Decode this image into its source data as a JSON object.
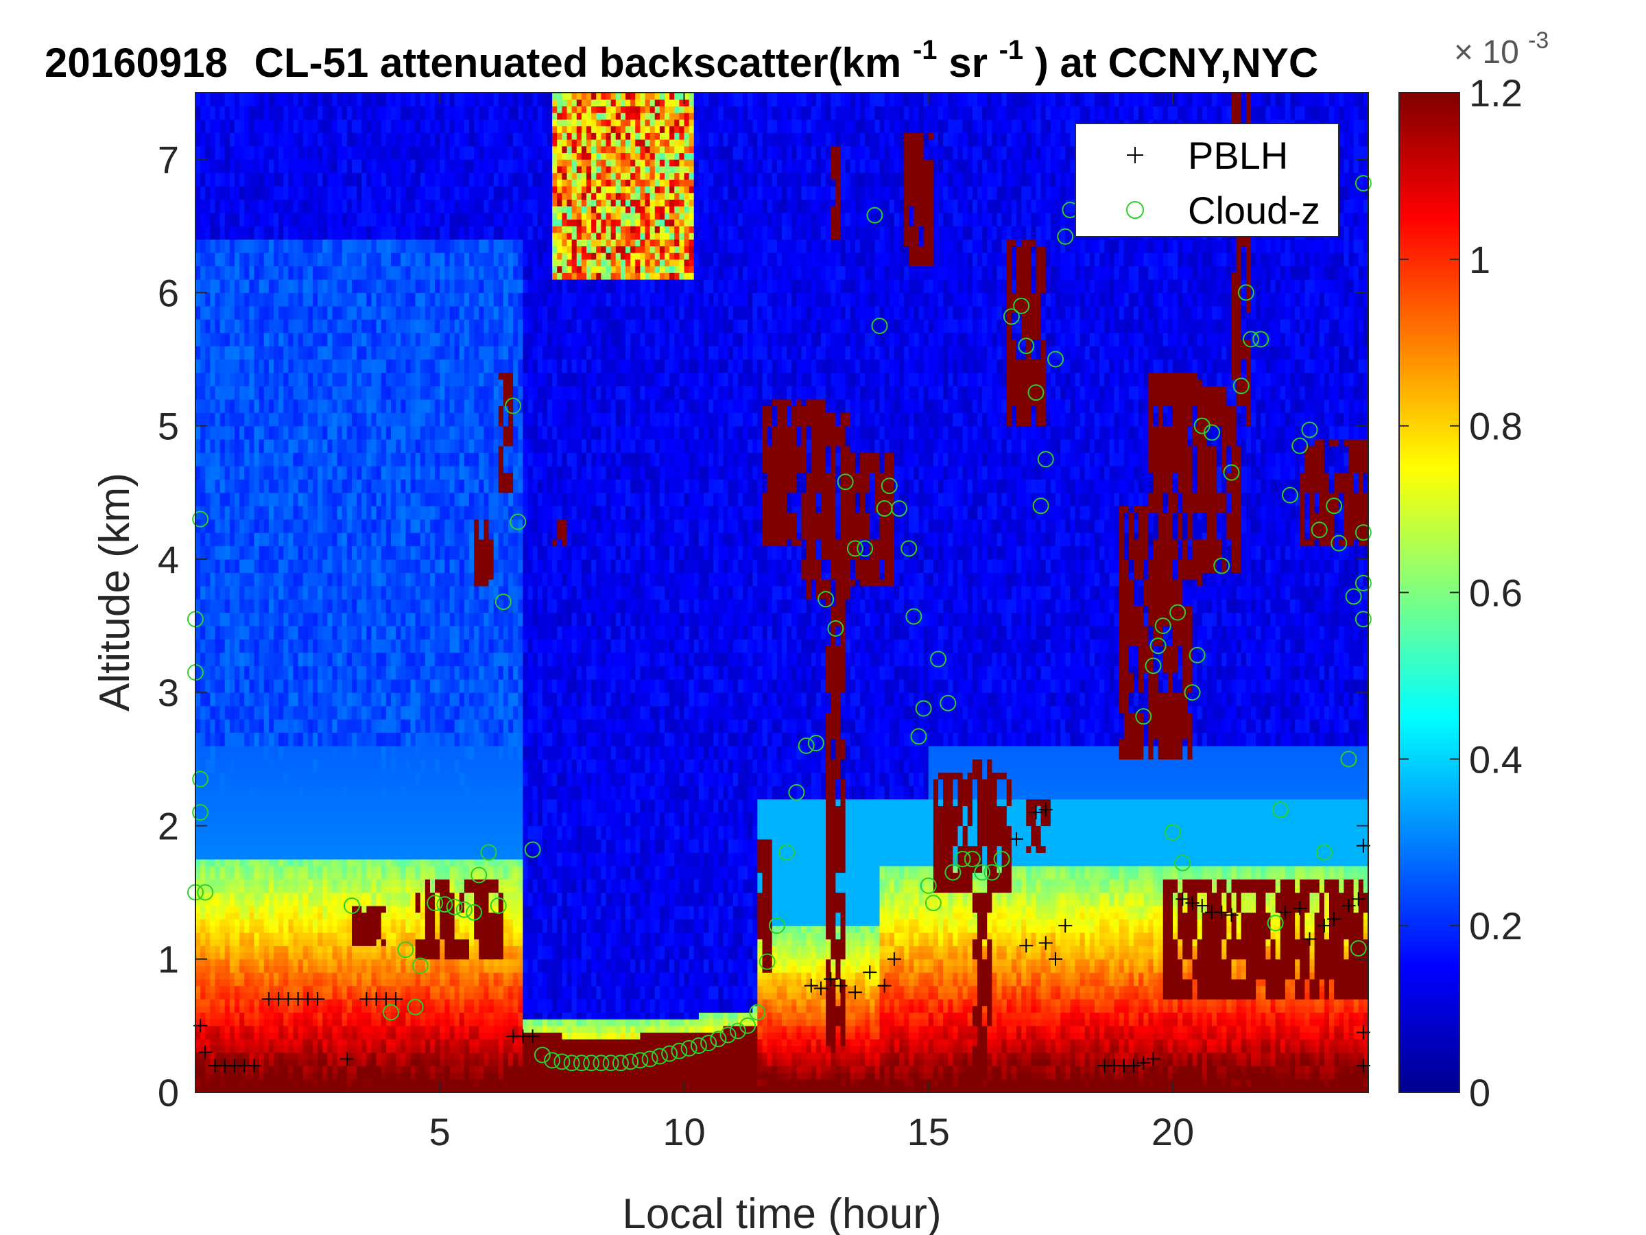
{
  "chart_data": {
    "type": "heatmap",
    "title": {
      "date": "20160918",
      "prefix": "CL-51 attenuated backscatter(km",
      "exp1": "-1",
      "mid": "sr",
      "exp2": "-1",
      "suffix": ") at CCNY,NYC"
    },
    "xlabel": "Local time (hour)",
    "ylabel": "Altitude (km)",
    "xlim": [
      0,
      24
    ],
    "ylim": [
      0,
      7.5
    ],
    "x_ticks": [
      5,
      10,
      15,
      20
    ],
    "y_ticks": [
      0,
      1,
      2,
      3,
      4,
      5,
      6,
      7
    ],
    "colorbar": {
      "range": [
        0,
        0.0012
      ],
      "ticks": [
        "0",
        "0.2",
        "0.4",
        "0.6",
        "0.8",
        "1",
        "1.2"
      ],
      "multiplier": "× 10",
      "multiplier_exp": "-3",
      "colormap": "jet"
    },
    "legend": {
      "placement": "top-right",
      "entries": [
        {
          "label": "PBLH",
          "marker": "+",
          "color": "#000000"
        },
        {
          "label": "Cloud-z",
          "marker": "o",
          "color": "#2bd12b"
        }
      ]
    },
    "series": [
      {
        "name": "PBLH",
        "points": [
          [
            0.1,
            0.5
          ],
          [
            0.2,
            0.3
          ],
          [
            0.4,
            0.2
          ],
          [
            0.6,
            0.2
          ],
          [
            0.8,
            0.2
          ],
          [
            1.0,
            0.2
          ],
          [
            1.2,
            0.2
          ],
          [
            1.5,
            0.7
          ],
          [
            1.7,
            0.7
          ],
          [
            1.9,
            0.7
          ],
          [
            2.1,
            0.7
          ],
          [
            2.3,
            0.7
          ],
          [
            2.5,
            0.7
          ],
          [
            3.1,
            0.25
          ],
          [
            3.5,
            0.7
          ],
          [
            3.7,
            0.7
          ],
          [
            3.9,
            0.7
          ],
          [
            4.1,
            0.7
          ],
          [
            6.5,
            0.42
          ],
          [
            6.7,
            0.42
          ],
          [
            6.9,
            0.42
          ],
          [
            12.6,
            0.8
          ],
          [
            12.8,
            0.78
          ],
          [
            13.0,
            0.85
          ],
          [
            13.2,
            0.8
          ],
          [
            13.5,
            0.75
          ],
          [
            13.8,
            0.9
          ],
          [
            14.1,
            0.8
          ],
          [
            14.3,
            1.0
          ],
          [
            16.8,
            1.9
          ],
          [
            17.2,
            2.1
          ],
          [
            17.4,
            2.12
          ],
          [
            17.0,
            1.1
          ],
          [
            17.4,
            1.12
          ],
          [
            17.6,
            1.0
          ],
          [
            17.8,
            1.25
          ],
          [
            18.6,
            0.2
          ],
          [
            18.8,
            0.2
          ],
          [
            19.0,
            0.2
          ],
          [
            19.2,
            0.2
          ],
          [
            19.4,
            0.22
          ],
          [
            19.6,
            0.25
          ],
          [
            20.2,
            1.45
          ],
          [
            20.4,
            1.42
          ],
          [
            20.6,
            1.4
          ],
          [
            20.8,
            1.35
          ],
          [
            21.0,
            1.35
          ],
          [
            21.2,
            1.33
          ],
          [
            22.3,
            1.35
          ],
          [
            22.6,
            1.38
          ],
          [
            22.8,
            1.15
          ],
          [
            23.1,
            1.25
          ],
          [
            23.3,
            1.3
          ],
          [
            23.6,
            1.4
          ],
          [
            23.8,
            1.45
          ],
          [
            23.9,
            0.45
          ],
          [
            23.9,
            0.2
          ],
          [
            23.9,
            1.85
          ]
        ]
      },
      {
        "name": "Cloud-z",
        "points": [
          [
            0.0,
            1.5
          ],
          [
            0.2,
            1.5
          ],
          [
            0.0,
            3.15
          ],
          [
            0.0,
            3.55
          ],
          [
            0.1,
            4.3
          ],
          [
            0.1,
            2.35
          ],
          [
            0.1,
            2.1
          ],
          [
            3.2,
            1.4
          ],
          [
            4.0,
            0.6
          ],
          [
            4.3,
            1.07
          ],
          [
            4.6,
            0.95
          ],
          [
            4.5,
            0.64
          ],
          [
            4.9,
            1.42
          ],
          [
            5.1,
            1.41
          ],
          [
            5.3,
            1.39
          ],
          [
            5.5,
            1.37
          ],
          [
            5.7,
            1.35
          ],
          [
            5.8,
            1.63
          ],
          [
            6.0,
            1.8
          ],
          [
            6.2,
            1.4
          ],
          [
            6.3,
            3.68
          ],
          [
            6.5,
            5.15
          ],
          [
            6.6,
            4.28
          ],
          [
            6.9,
            1.82
          ],
          [
            7.1,
            0.28
          ],
          [
            7.3,
            0.24
          ],
          [
            7.5,
            0.23
          ],
          [
            7.7,
            0.22
          ],
          [
            7.9,
            0.22
          ],
          [
            8.1,
            0.22
          ],
          [
            8.3,
            0.22
          ],
          [
            8.5,
            0.22
          ],
          [
            8.7,
            0.22
          ],
          [
            8.9,
            0.23
          ],
          [
            9.1,
            0.24
          ],
          [
            9.3,
            0.25
          ],
          [
            9.5,
            0.27
          ],
          [
            9.7,
            0.29
          ],
          [
            9.9,
            0.31
          ],
          [
            10.1,
            0.33
          ],
          [
            10.3,
            0.35
          ],
          [
            10.5,
            0.37
          ],
          [
            10.7,
            0.4
          ],
          [
            10.9,
            0.43
          ],
          [
            11.1,
            0.46
          ],
          [
            11.3,
            0.5
          ],
          [
            11.5,
            0.6
          ],
          [
            11.7,
            0.98
          ],
          [
            11.9,
            1.25
          ],
          [
            12.1,
            1.8
          ],
          [
            12.3,
            2.25
          ],
          [
            12.5,
            2.6
          ],
          [
            12.7,
            2.62
          ],
          [
            12.9,
            3.7
          ],
          [
            13.1,
            3.48
          ],
          [
            13.3,
            4.58
          ],
          [
            13.5,
            4.08
          ],
          [
            13.7,
            4.08
          ],
          [
            13.9,
            6.58
          ],
          [
            14.0,
            5.75
          ],
          [
            14.1,
            4.38
          ],
          [
            14.2,
            4.55
          ],
          [
            14.4,
            4.38
          ],
          [
            14.6,
            4.08
          ],
          [
            14.7,
            3.57
          ],
          [
            14.8,
            2.67
          ],
          [
            14.9,
            2.88
          ],
          [
            15.0,
            1.55
          ],
          [
            15.1,
            1.42
          ],
          [
            15.2,
            3.25
          ],
          [
            15.4,
            2.92
          ],
          [
            15.5,
            1.65
          ],
          [
            15.7,
            1.75
          ],
          [
            15.9,
            1.75
          ],
          [
            16.1,
            1.65
          ],
          [
            16.3,
            1.65
          ],
          [
            16.5,
            1.75
          ],
          [
            16.7,
            5.82
          ],
          [
            16.9,
            5.9
          ],
          [
            17.0,
            5.6
          ],
          [
            17.2,
            5.25
          ],
          [
            17.3,
            4.4
          ],
          [
            17.4,
            4.75
          ],
          [
            17.6,
            5.5
          ],
          [
            17.8,
            6.42
          ],
          [
            17.9,
            6.62
          ],
          [
            19.4,
            2.82
          ],
          [
            19.6,
            3.2
          ],
          [
            19.7,
            3.35
          ],
          [
            19.8,
            3.5
          ],
          [
            20.0,
            1.95
          ],
          [
            20.1,
            3.6
          ],
          [
            20.2,
            1.72
          ],
          [
            20.4,
            3.0
          ],
          [
            20.5,
            3.28
          ],
          [
            20.6,
            5.0
          ],
          [
            20.8,
            4.95
          ],
          [
            21.0,
            3.95
          ],
          [
            21.2,
            4.65
          ],
          [
            21.4,
            5.3
          ],
          [
            21.5,
            6.0
          ],
          [
            21.6,
            5.65
          ],
          [
            21.8,
            5.65
          ],
          [
            22.1,
            1.27
          ],
          [
            22.2,
            2.12
          ],
          [
            22.4,
            4.48
          ],
          [
            22.6,
            4.85
          ],
          [
            22.8,
            4.97
          ],
          [
            23.0,
            4.22
          ],
          [
            23.1,
            1.8
          ],
          [
            23.3,
            4.4
          ],
          [
            23.4,
            4.12
          ],
          [
            23.6,
            2.5
          ],
          [
            23.7,
            3.72
          ],
          [
            23.8,
            1.08
          ],
          [
            23.9,
            3.82
          ],
          [
            23.9,
            4.2
          ],
          [
            23.9,
            6.82
          ],
          [
            23.9,
            3.55
          ]
        ]
      }
    ]
  }
}
